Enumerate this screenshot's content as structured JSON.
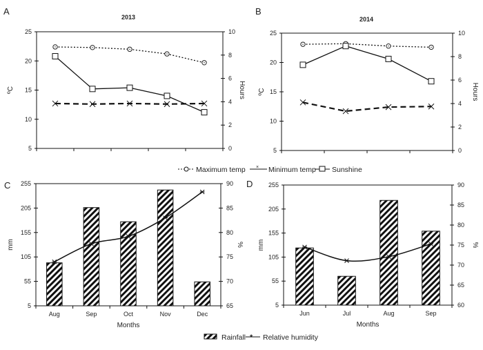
{
  "legend_top": {
    "items": [
      "Maximum temp",
      "Minimum temp",
      "Sunshine"
    ]
  },
  "legend_bottom": {
    "items": [
      "Rainfall",
      "Relative humidity"
    ]
  },
  "chart_data": [
    {
      "panel": "A",
      "type": "line",
      "title": "2013",
      "categories": [
        "",
        "",
        "",
        "",
        ""
      ],
      "ylabel": "ºC",
      "ylim": [
        5,
        25
      ],
      "yticks": [
        5,
        10,
        15,
        20,
        25
      ],
      "y2label": "Hours",
      "y2lim": [
        0,
        10
      ],
      "y2ticks": [
        0,
        2,
        4,
        6,
        8,
        10
      ],
      "series": [
        {
          "name": "Maximum temp",
          "axis": "left",
          "values": [
            22.4,
            22.3,
            22.0,
            21.2,
            19.7
          ]
        },
        {
          "name": "Minimum temp",
          "axis": "left",
          "values": [
            12.7,
            12.6,
            12.7,
            12.6,
            12.7
          ]
        },
        {
          "name": "Sunshine",
          "axis": "right",
          "values": [
            7.9,
            5.1,
            5.2,
            4.5,
            3.1
          ]
        }
      ]
    },
    {
      "panel": "B",
      "type": "line",
      "title": "2014",
      "categories": [
        "",
        "",
        "",
        ""
      ],
      "ylabel": "ºC",
      "ylim": [
        5,
        25
      ],
      "yticks": [
        5,
        10,
        15,
        20,
        25
      ],
      "y2label": "Hours",
      "y2lim": [
        0,
        10
      ],
      "y2ticks": [
        0,
        2,
        4,
        6,
        8,
        10
      ],
      "series": [
        {
          "name": "Maximum temp",
          "axis": "left",
          "values": [
            23.1,
            23.2,
            22.8,
            22.6
          ]
        },
        {
          "name": "Minimum temp",
          "axis": "left",
          "values": [
            13.2,
            11.7,
            12.4,
            12.5
          ]
        },
        {
          "name": "Sunshine",
          "axis": "right",
          "values": [
            7.3,
            8.9,
            7.8,
            5.9
          ]
        }
      ]
    },
    {
      "panel": "C",
      "type": "bar",
      "categories": [
        "Aug",
        "Sep",
        "Oct",
        "Nov",
        "Dec"
      ],
      "xlabel": "Months",
      "ylabel": "mm",
      "ylim": [
        5,
        255
      ],
      "yticks": [
        5,
        55,
        105,
        155,
        205,
        255
      ],
      "y2label": "%",
      "y2lim": [
        65,
        90
      ],
      "y2ticks": [
        65,
        70,
        75,
        80,
        85,
        90
      ],
      "series": [
        {
          "name": "Rainfall",
          "axis": "left",
          "values": [
            93,
            206,
            177,
            242,
            54
          ]
        },
        {
          "name": "Relative humidity",
          "axis": "right",
          "values": [
            74.0,
            77.7,
            79.2,
            83.0,
            88.3
          ]
        }
      ]
    },
    {
      "panel": "D",
      "type": "bar",
      "categories": [
        "Jun",
        "Jul",
        "Aug",
        "Sep"
      ],
      "xlabel": "Months",
      "ylabel": "mm",
      "ylim": [
        5,
        255
      ],
      "yticks": [
        5,
        55,
        105,
        155,
        205,
        255
      ],
      "y2label": "%",
      "y2lim": [
        60,
        90
      ],
      "y2ticks": [
        60,
        65,
        70,
        75,
        80,
        85,
        90
      ],
      "series": [
        {
          "name": "Rainfall",
          "axis": "left",
          "values": [
            124,
            65,
            223,
            159
          ]
        },
        {
          "name": "Relative humidity",
          "axis": "right",
          "values": [
            74.5,
            71.1,
            72.1,
            75.3
          ]
        }
      ]
    }
  ]
}
